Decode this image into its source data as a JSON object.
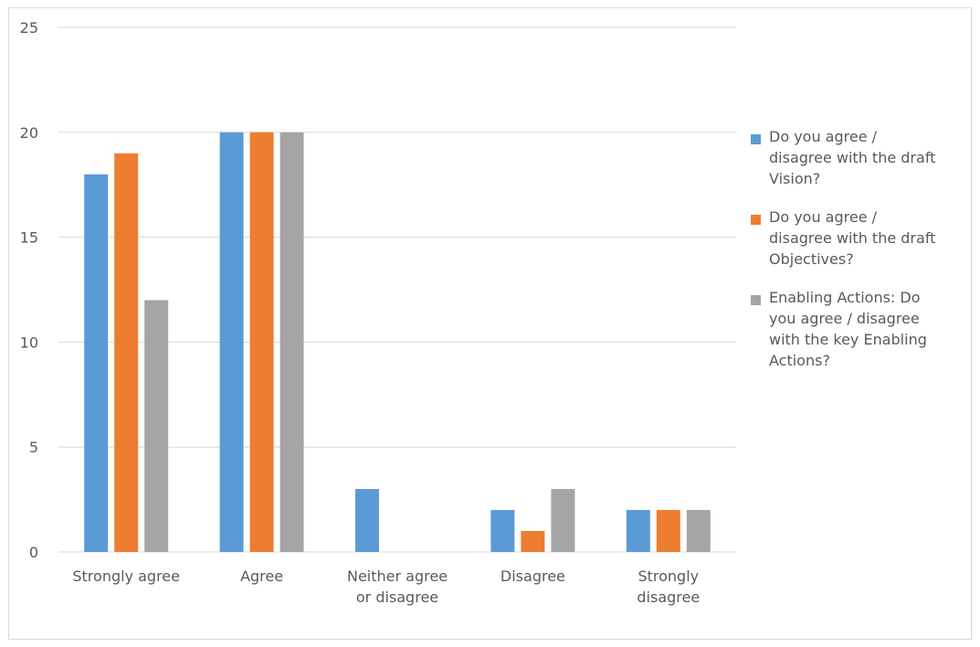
{
  "chart_data": {
    "type": "bar",
    "title": "",
    "xlabel": "",
    "ylabel": "",
    "ylim": [
      0,
      25
    ],
    "yticks": [
      0,
      5,
      10,
      15,
      20,
      25
    ],
    "grid": true,
    "legend_position": "right",
    "categories": [
      [
        "Strongly agree"
      ],
      [
        "Agree"
      ],
      [
        "Neither agree",
        "or disagree"
      ],
      [
        "Disagree"
      ],
      [
        "Strongly",
        "disagree"
      ]
    ],
    "series": [
      {
        "name": [
          "Do you agree /",
          "disagree with the draft",
          "Vision?"
        ],
        "color": "#5b9bd5",
        "values": [
          18,
          20,
          3,
          2,
          2
        ]
      },
      {
        "name": [
          "Do you agree /",
          "disagree with the draft",
          "Objectives?"
        ],
        "color": "#ed7d31",
        "values": [
          19,
          20,
          0,
          1,
          2
        ]
      },
      {
        "name": [
          "Enabling Actions: Do",
          "you agree / disagree",
          "with the key Enabling",
          "Actions?"
        ],
        "color": "#a5a5a5",
        "values": [
          12,
          20,
          0,
          3,
          2
        ]
      }
    ]
  }
}
